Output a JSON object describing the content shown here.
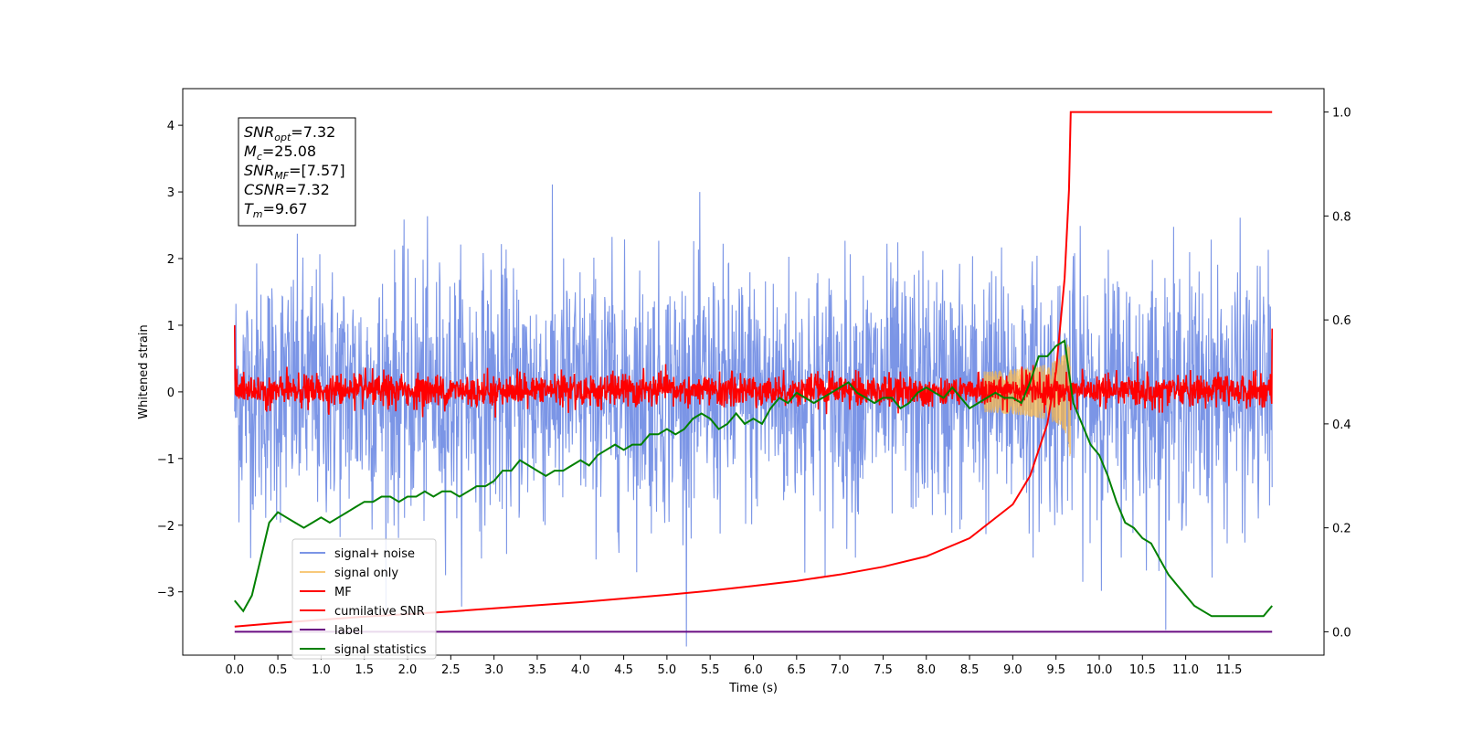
{
  "chart_data": {
    "type": "line",
    "xlabel": "Time (s)",
    "ylabel": "Whitened strain",
    "xlim": [
      -0.6,
      12.6
    ],
    "ylim": [
      -3.95,
      4.55
    ],
    "y2lim": [
      -0.045,
      1.045
    ],
    "xticks": [
      "0.0",
      "0.5",
      "1.0",
      "1.5",
      "2.0",
      "2.5",
      "3.0",
      "3.5",
      "4.0",
      "4.5",
      "5.0",
      "5.5",
      "6.0",
      "6.5",
      "7.0",
      "7.5",
      "8.0",
      "8.5",
      "9.0",
      "9.5",
      "10.0",
      "10.5",
      "11.0",
      "11.5"
    ],
    "yticks": [
      "−3",
      "−2",
      "−1",
      "0",
      "1",
      "2",
      "3",
      "4"
    ],
    "y2ticks": [
      "0.0",
      "0.2",
      "0.4",
      "0.6",
      "0.8",
      "1.0"
    ],
    "annotation": {
      "lines": [
        {
          "main": "SNR",
          "sub": "opt",
          "rest": "=7.32"
        },
        {
          "main": "M",
          "sub": "c",
          "rest": "=25.08"
        },
        {
          "main": "SNR",
          "sub": "MF",
          "rest": "=[7.57]"
        },
        {
          "main": "CSNR",
          "sub": "",
          "rest": "=7.32"
        },
        {
          "main": "T",
          "sub": "m",
          "rest": "=9.67"
        }
      ]
    },
    "legend_position": "lower-left",
    "series": [
      {
        "name": "signal+ noise",
        "color": "#7b95e6",
        "axis": "left",
        "style": "noise",
        "amplitude_sigma": 0.95,
        "x_range": [
          0,
          12.0
        ]
      },
      {
        "name": "signal only",
        "color": "#f5b74d",
        "axis": "left",
        "style": "chirp",
        "peak_time": 9.67,
        "peak_amplitude": 1.35
      },
      {
        "name": "MF",
        "color": "#ff0000",
        "axis": "left",
        "style": "noise",
        "amplitude_sigma": 0.12,
        "x_range": [
          0,
          12.0
        ]
      },
      {
        "name": "cumilative SNR",
        "color": "#ff0000",
        "axis": "right",
        "x": [
          0.0,
          0.5,
          1.0,
          1.5,
          2.0,
          2.5,
          3.0,
          3.5,
          4.0,
          4.5,
          5.0,
          5.5,
          6.0,
          6.5,
          7.0,
          7.5,
          8.0,
          8.5,
          9.0,
          9.2,
          9.4,
          9.5,
          9.6,
          9.65,
          9.67,
          11.5,
          12.0
        ],
        "y": [
          0.01,
          0.017,
          0.023,
          0.029,
          0.034,
          0.039,
          0.045,
          0.051,
          0.057,
          0.064,
          0.071,
          0.079,
          0.088,
          0.098,
          0.11,
          0.125,
          0.145,
          0.18,
          0.245,
          0.3,
          0.4,
          0.5,
          0.68,
          0.85,
          1.0,
          1.0,
          1.0
        ]
      },
      {
        "name": "label",
        "color": "#6a0d83",
        "axis": "right",
        "x": [
          0.0,
          12.0
        ],
        "y": [
          0.0,
          0.0
        ]
      },
      {
        "name": "signal statistics",
        "color": "#008000",
        "axis": "right",
        "x": [
          0.0,
          0.1,
          0.2,
          0.3,
          0.4,
          0.5,
          0.6,
          0.7,
          0.8,
          0.9,
          1.0,
          1.1,
          1.2,
          1.3,
          1.4,
          1.5,
          1.6,
          1.7,
          1.8,
          1.9,
          2.0,
          2.1,
          2.2,
          2.3,
          2.4,
          2.5,
          2.6,
          2.7,
          2.8,
          2.9,
          3.0,
          3.1,
          3.2,
          3.3,
          3.4,
          3.5,
          3.6,
          3.7,
          3.8,
          3.9,
          4.0,
          4.1,
          4.2,
          4.3,
          4.4,
          4.5,
          4.6,
          4.7,
          4.8,
          4.9,
          5.0,
          5.1,
          5.2,
          5.3,
          5.4,
          5.5,
          5.6,
          5.7,
          5.8,
          5.9,
          6.0,
          6.1,
          6.2,
          6.3,
          6.4,
          6.5,
          6.6,
          6.7,
          6.8,
          6.9,
          7.0,
          7.1,
          7.2,
          7.3,
          7.4,
          7.5,
          7.6,
          7.7,
          7.8,
          7.9,
          8.0,
          8.1,
          8.2,
          8.3,
          8.4,
          8.5,
          8.6,
          8.7,
          8.8,
          8.9,
          9.0,
          9.1,
          9.2,
          9.3,
          9.4,
          9.5,
          9.6,
          9.7,
          9.8,
          9.9,
          10.0,
          10.1,
          10.2,
          10.3,
          10.4,
          10.5,
          10.6,
          10.7,
          10.8,
          10.9,
          11.0,
          11.1,
          11.2,
          11.3,
          11.4,
          11.5,
          11.6,
          11.7,
          11.8,
          11.9,
          12.0
        ],
        "y": [
          0.06,
          0.04,
          0.07,
          0.14,
          0.21,
          0.23,
          0.22,
          0.21,
          0.2,
          0.21,
          0.22,
          0.21,
          0.22,
          0.23,
          0.24,
          0.25,
          0.25,
          0.26,
          0.26,
          0.25,
          0.26,
          0.26,
          0.27,
          0.26,
          0.27,
          0.27,
          0.26,
          0.27,
          0.28,
          0.28,
          0.29,
          0.31,
          0.31,
          0.33,
          0.32,
          0.31,
          0.3,
          0.31,
          0.31,
          0.32,
          0.33,
          0.32,
          0.34,
          0.35,
          0.36,
          0.35,
          0.36,
          0.36,
          0.38,
          0.38,
          0.39,
          0.38,
          0.39,
          0.41,
          0.42,
          0.41,
          0.39,
          0.4,
          0.42,
          0.4,
          0.41,
          0.4,
          0.43,
          0.45,
          0.44,
          0.46,
          0.45,
          0.44,
          0.45,
          0.46,
          0.47,
          0.48,
          0.46,
          0.45,
          0.44,
          0.45,
          0.45,
          0.43,
          0.44,
          0.46,
          0.47,
          0.46,
          0.45,
          0.47,
          0.45,
          0.43,
          0.44,
          0.45,
          0.46,
          0.45,
          0.45,
          0.44,
          0.48,
          0.53,
          0.53,
          0.55,
          0.56,
          0.44,
          0.4,
          0.36,
          0.34,
          0.3,
          0.25,
          0.21,
          0.2,
          0.18,
          0.17,
          0.14,
          0.11,
          0.09,
          0.07,
          0.05,
          0.04,
          0.03,
          0.03,
          0.03,
          0.03,
          0.03,
          0.03,
          0.03,
          0.05
        ]
      }
    ]
  }
}
